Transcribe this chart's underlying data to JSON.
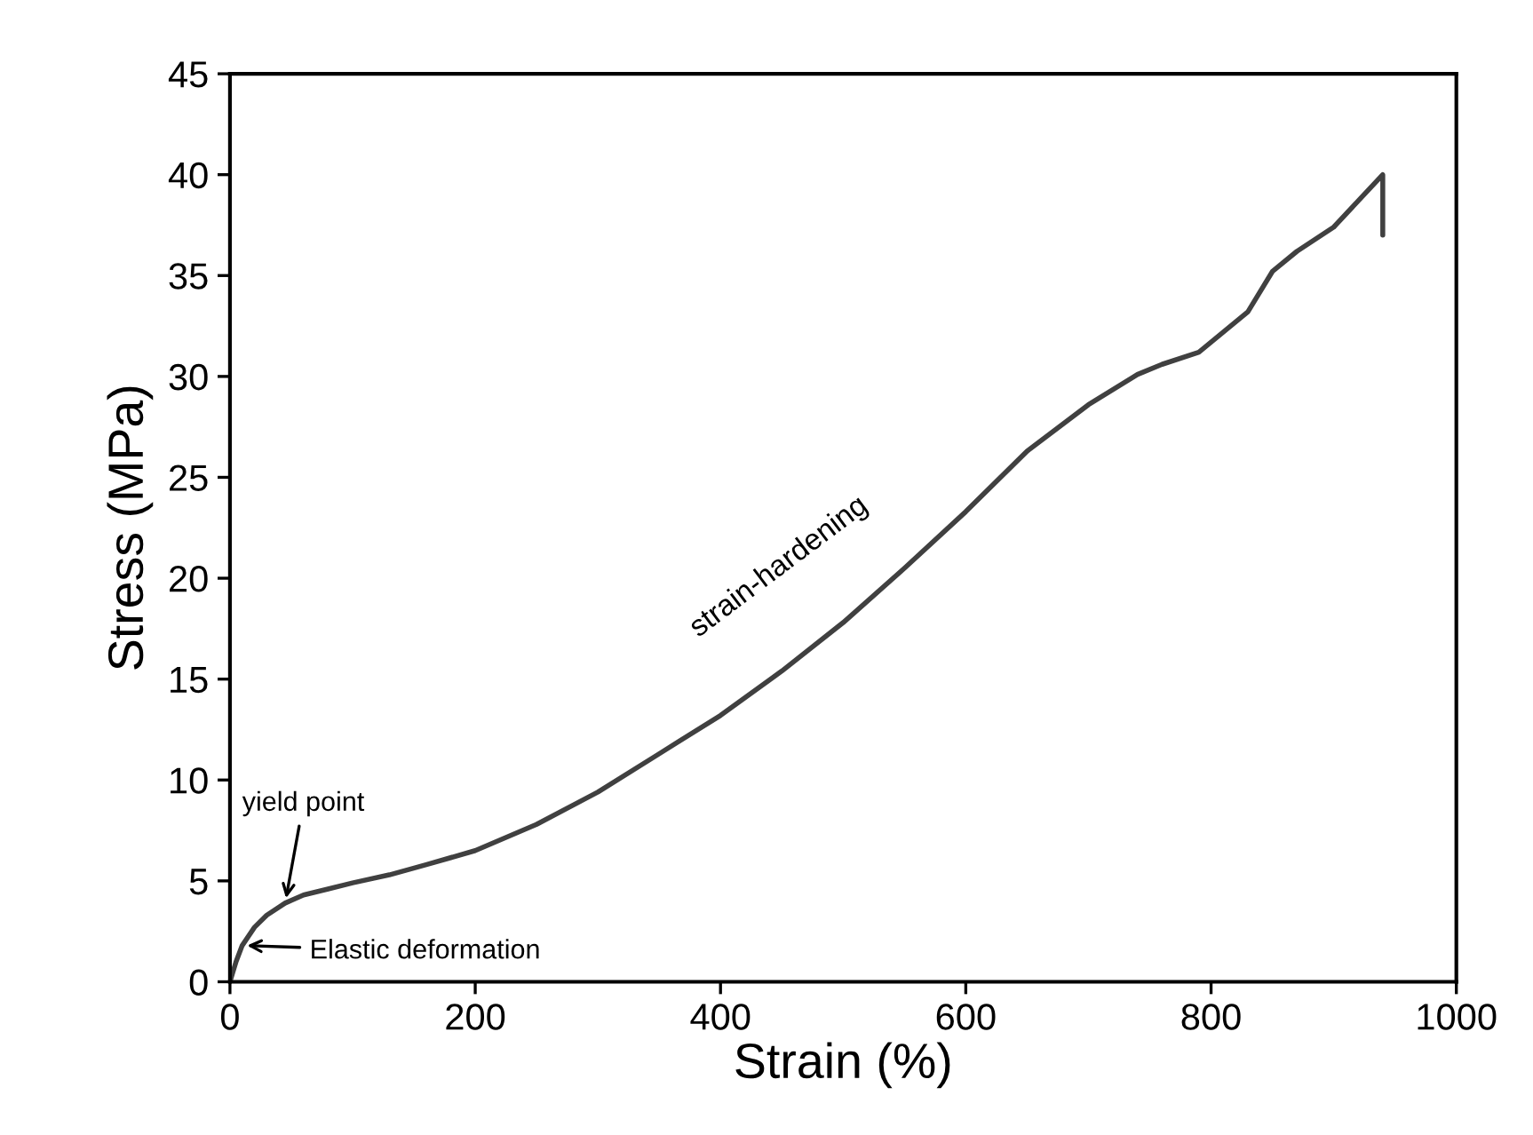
{
  "chart_data": {
    "type": "line",
    "xlabel": "Strain (%)",
    "ylabel": "Stress (MPa)",
    "xlim": [
      0,
      1000
    ],
    "xticks": [
      0,
      200,
      400,
      600,
      800,
      1000
    ],
    "ylim": [
      0,
      45
    ],
    "yticks": [
      0,
      5,
      10,
      15,
      20,
      25,
      30,
      35,
      40,
      45
    ],
    "grid": false,
    "series": [
      {
        "color": "#404040",
        "x": [
          0,
          5,
          10,
          20,
          30,
          45,
          60,
          80,
          100,
          130,
          160,
          200,
          250,
          300,
          350,
          400,
          450,
          500,
          550,
          600,
          650,
          700,
          740,
          760,
          790,
          810,
          830,
          850,
          870,
          900,
          920,
          940,
          940
        ],
        "values": [
          0,
          1.0,
          1.8,
          2.7,
          3.3,
          3.9,
          4.3,
          4.6,
          4.9,
          5.3,
          5.8,
          6.5,
          7.8,
          9.4,
          11.3,
          13.2,
          15.4,
          17.8,
          20.5,
          23.3,
          26.3,
          28.6,
          30.1,
          30.6,
          31.2,
          32.2,
          33.2,
          35.2,
          36.2,
          37.4,
          38.7,
          40.0,
          37.0
        ]
      }
    ],
    "annotations": [
      {
        "text": "Elastic deformation",
        "x": 10,
        "y": 1.8
      },
      {
        "text": "yield point",
        "x": 45,
        "y": 3.9
      },
      {
        "text": "strain-hardening",
        "x": 500,
        "y": 17.8
      }
    ]
  }
}
